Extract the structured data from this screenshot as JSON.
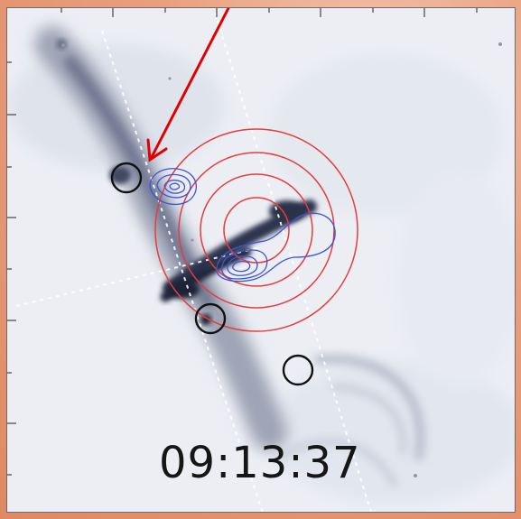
{
  "image": {
    "timestamp": "09:13:37"
  },
  "colors": {
    "frame_background": "#eef0f5",
    "outer_background": "#e08961",
    "red_circles": "#e53d3d",
    "blue_contours": "#3a55d6",
    "black_circles": "#111111",
    "arrow": "#e00000",
    "guides": "#ffffff"
  }
}
